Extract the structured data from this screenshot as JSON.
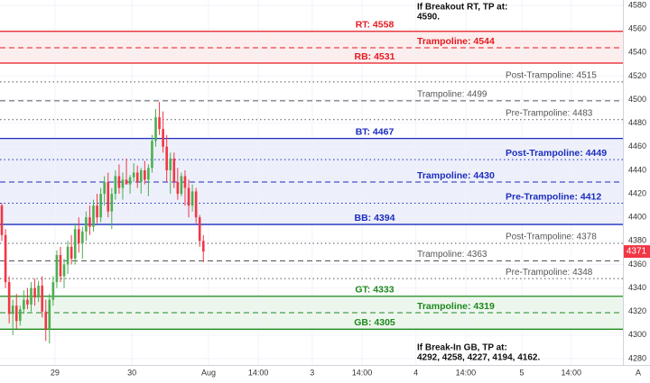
{
  "chart_data": {
    "type": "candlestick",
    "up_color": "#4caf50",
    "down_color": "#f23645",
    "grid": true,
    "ylim": [
      4280,
      4580
    ],
    "yticks": [
      4280,
      4300,
      4320,
      4340,
      4360,
      4380,
      4400,
      4420,
      4440,
      4460,
      4480,
      4500,
      4520,
      4540,
      4560,
      4580
    ],
    "xlim": [
      -0.5,
      169.5
    ],
    "xticks": [
      {
        "value": 14.5,
        "label": "29"
      },
      {
        "value": 35.5,
        "label": "30"
      },
      {
        "value": 56.4,
        "label": "Aug"
      },
      {
        "value": 70,
        "label": "14:00"
      },
      {
        "value": 84.7,
        "label": "3"
      },
      {
        "value": 98.3,
        "label": "14:00"
      },
      {
        "value": 113,
        "label": "4"
      },
      {
        "value": 126.6,
        "label": "14:00"
      },
      {
        "value": 141.9,
        "label": "5"
      },
      {
        "value": 155.4,
        "label": "14:00"
      }
    ],
    "open": [
      4410,
      4385,
      4345,
      4318,
      4325,
      4312,
      4322,
      4330,
      4326,
      4340,
      4332,
      4342,
      4320,
      4305,
      4330,
      4345,
      4368,
      4350,
      4360,
      4375,
      4365,
      4390,
      4378,
      4388,
      4400,
      4392,
      4410,
      4400,
      4420,
      4430,
      4405,
      4420,
      4435,
      4425,
      4432,
      4428,
      4434,
      4438,
      4430,
      4440,
      4432,
      4442,
      4465,
      4485,
      4475,
      4460,
      4440,
      4450,
      4430,
      4420,
      4435,
      4425,
      4410,
      4422,
      4400,
      4380
    ],
    "high": [
      4412,
      4390,
      4350,
      4330,
      4335,
      4325,
      4338,
      4340,
      4345,
      4348,
      4346,
      4350,
      4330,
      4335,
      4350,
      4372,
      4375,
      4365,
      4380,
      4385,
      4395,
      4400,
      4392,
      4405,
      4410,
      4415,
      4420,
      4425,
      4435,
      4438,
      4425,
      4440,
      4445,
      4438,
      4450,
      4436,
      4446,
      4444,
      4442,
      4448,
      4445,
      4470,
      4492,
      4498,
      4490,
      4470,
      4455,
      4455,
      4442,
      4438,
      4440,
      4432,
      4428,
      4425,
      4402,
      4385
    ],
    "low": [
      4380,
      4340,
      4310,
      4300,
      4305,
      4308,
      4318,
      4322,
      4320,
      4325,
      4328,
      4315,
      4295,
      4293,
      4325,
      4340,
      4345,
      4340,
      4352,
      4360,
      4360,
      4370,
      4365,
      4380,
      4385,
      4388,
      4395,
      4396,
      4410,
      4400,
      4390,
      4415,
      4420,
      4415,
      4428,
      4420,
      4430,
      4425,
      4420,
      4428,
      4418,
      4438,
      4460,
      4470,
      4455,
      4430,
      4420,
      4425,
      4415,
      4418,
      4410,
      4400,
      4405,
      4395,
      4375,
      4362
    ],
    "close": [
      4385,
      4345,
      4318,
      4325,
      4312,
      4322,
      4330,
      4326,
      4340,
      4332,
      4342,
      4320,
      4305,
      4330,
      4345,
      4368,
      4350,
      4360,
      4375,
      4365,
      4390,
      4378,
      4388,
      4400,
      4392,
      4410,
      4400,
      4420,
      4430,
      4405,
      4420,
      4435,
      4425,
      4432,
      4428,
      4434,
      4438,
      4430,
      4440,
      4432,
      4442,
      4465,
      4485,
      4475,
      4460,
      4440,
      4450,
      4430,
      4420,
      4435,
      4425,
      4410,
      4422,
      4400,
      4380,
      4371
    ],
    "last_price": 4371,
    "levels": [
      {
        "label": "RT: 4558",
        "value": 4558,
        "style": "solid",
        "color": "#e5191f"
      },
      {
        "label": "Trampoline: 4544",
        "value": 4544,
        "style": "dashed",
        "color": "#e5191f"
      },
      {
        "label": "RB: 4531",
        "value": 4531,
        "style": "solid",
        "color": "#e5191f"
      },
      {
        "label": "Post-Trampoline: 4515",
        "value": 4515,
        "style": "dotted",
        "color": "#555555"
      },
      {
        "label": "Trampoline: 4499",
        "value": 4499,
        "style": "dashed",
        "color": "#555555"
      },
      {
        "label": "Pre-Trampoline: 4483",
        "value": 4483,
        "style": "dotted",
        "color": "#555555"
      },
      {
        "label": "BT: 4467",
        "value": 4467,
        "style": "solid",
        "color": "#1c2dbf"
      },
      {
        "label": "Post-Trampoline: 4449",
        "value": 4449,
        "style": "dotted",
        "color": "#1c2dbf"
      },
      {
        "label": "Trampoline: 4430",
        "value": 4430,
        "style": "dashed",
        "color": "#1c2dbf"
      },
      {
        "label": "Pre-Trampoline: 4412",
        "value": 4412,
        "style": "dotted",
        "color": "#1c2dbf"
      },
      {
        "label": "BB: 4394",
        "value": 4394,
        "style": "solid",
        "color": "#1c2dbf"
      },
      {
        "label": "Post-Trampoline: 4378",
        "value": 4378,
        "style": "dotted",
        "color": "#555555"
      },
      {
        "label": "Trampoline: 4363",
        "value": 4363,
        "style": "dashed",
        "color": "#555555"
      },
      {
        "label": "Pre-Trampoline: 4348",
        "value": 4348,
        "style": "dotted",
        "color": "#555555"
      },
      {
        "label": "GT: 4333",
        "value": 4333,
        "style": "solid",
        "color": "#1b8a1b"
      },
      {
        "label": "Trampoline: 4319",
        "value": 4319,
        "style": "dashed",
        "color": "#1b8a1b"
      },
      {
        "label": "GB: 4305",
        "value": 4305,
        "style": "solid",
        "color": "#1b8a1b"
      }
    ],
    "annotations": [
      {
        "lines": [
          "If Breakout RT, TP at:",
          "4590."
        ],
        "position": "top"
      },
      {
        "lines": [
          "If Break-In GB, TP at:",
          "4292, 4258, 4227, 4194, 4162."
        ],
        "position": "bottom"
      }
    ],
    "axis_mode_label": "A"
  }
}
